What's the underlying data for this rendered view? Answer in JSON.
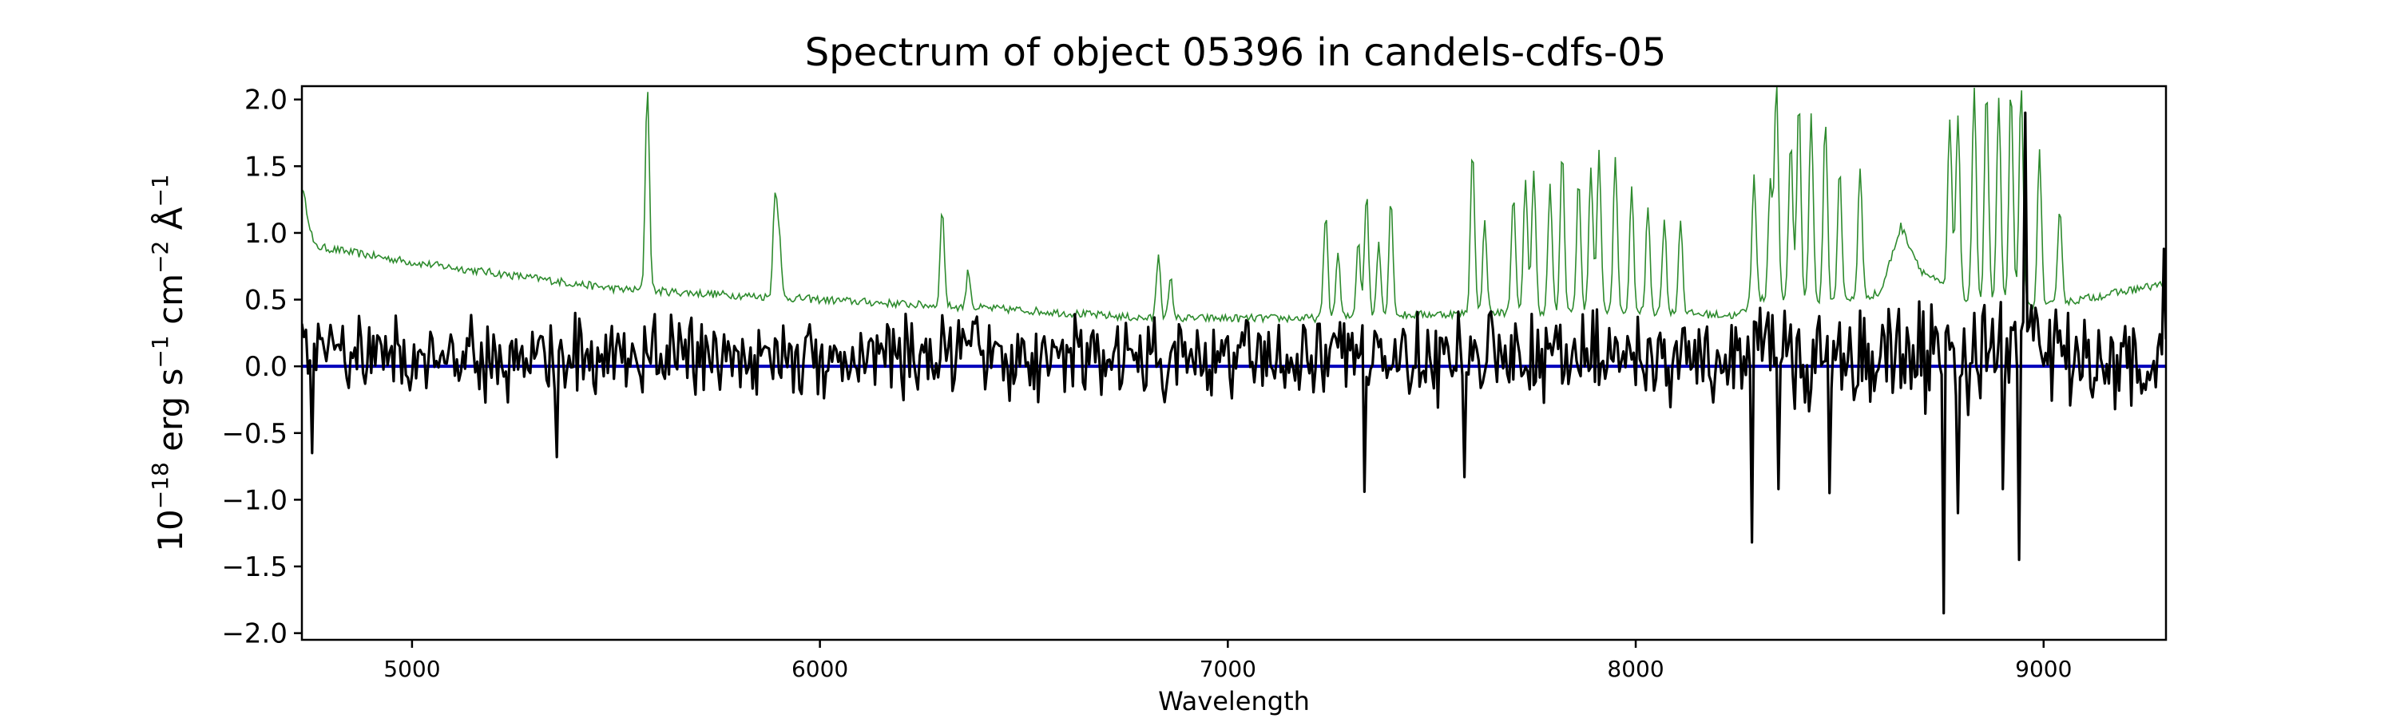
{
  "chart_data": {
    "type": "line",
    "title": "Spectrum of object 05396 in candels-cdfs-05",
    "xlabel": "Wavelength",
    "ylabel": {
      "base": "10",
      "exp1": "−18",
      "mid1": " erg s",
      "exp2": "−1",
      "mid2": " cm",
      "exp3": "−2",
      "mid3": " Å",
      "exp4": "−1"
    },
    "xlim": [
      4730,
      9300
    ],
    "ylim": [
      -2.05,
      2.1
    ],
    "xticks": [
      5000,
      6000,
      7000,
      8000,
      9000
    ],
    "yticks": [
      2.0,
      1.5,
      1.0,
      0.5,
      0.0,
      -0.5,
      -1.0,
      -1.5,
      -2.0
    ],
    "ytick_labels": [
      "2.0",
      "1.5",
      "1.0",
      "0.5",
      "0.0",
      "−0.5",
      "−1.0",
      "−1.5",
      "−2.0"
    ],
    "grid": false,
    "series": [
      {
        "color": "#2e8b2e",
        "continuum": [
          [
            4730,
            1.35
          ],
          [
            4760,
            0.9
          ],
          [
            5000,
            0.78
          ],
          [
            5500,
            0.58
          ],
          [
            6000,
            0.5
          ],
          [
            6500,
            0.42
          ],
          [
            6800,
            0.36
          ],
          [
            7000,
            0.36
          ],
          [
            7200,
            0.36
          ],
          [
            7500,
            0.39
          ],
          [
            7800,
            0.41
          ],
          [
            8100,
            0.4
          ],
          [
            8250,
            0.38
          ],
          [
            8300,
            0.5
          ],
          [
            8500,
            0.48
          ],
          [
            8600,
            0.55
          ],
          [
            8650,
            1.05
          ],
          [
            8700,
            0.72
          ],
          [
            8800,
            0.5
          ],
          [
            9000,
            0.45
          ],
          [
            9300,
            0.62
          ]
        ],
        "peaks": [
          [
            5577,
            2.1
          ],
          [
            5890,
            1.27
          ],
          [
            5900,
            0.95
          ],
          [
            6300,
            1.18
          ],
          [
            6364,
            0.72
          ],
          [
            6830,
            0.85
          ],
          [
            6860,
            0.65
          ],
          [
            7240,
            1.15
          ],
          [
            7270,
            0.85
          ],
          [
            7320,
            0.95
          ],
          [
            7340,
            1.3
          ],
          [
            7370,
            0.95
          ],
          [
            7400,
            1.25
          ],
          [
            7600,
            1.65
          ],
          [
            7630,
            1.1
          ],
          [
            7700,
            1.3
          ],
          [
            7730,
            1.4
          ],
          [
            7750,
            1.45
          ],
          [
            7790,
            1.35
          ],
          [
            7820,
            1.6
          ],
          [
            7860,
            1.4
          ],
          [
            7890,
            1.5
          ],
          [
            7910,
            1.62
          ],
          [
            7950,
            1.55
          ],
          [
            7990,
            1.32
          ],
          [
            8030,
            1.2
          ],
          [
            8070,
            1.1
          ],
          [
            8110,
            1.1
          ],
          [
            8290,
            1.45
          ],
          [
            8330,
            1.4
          ],
          [
            8345,
            2.1
          ],
          [
            8380,
            1.7
          ],
          [
            8400,
            2.0
          ],
          [
            8430,
            1.9
          ],
          [
            8465,
            1.85
          ],
          [
            8500,
            1.5
          ],
          [
            8550,
            1.5
          ],
          [
            8770,
            1.85
          ],
          [
            8790,
            1.9
          ],
          [
            8830,
            2.1
          ],
          [
            8860,
            2.1
          ],
          [
            8890,
            2.0
          ],
          [
            8920,
            2.1
          ],
          [
            8945,
            2.1
          ],
          [
            8990,
            1.6
          ],
          [
            9040,
            1.2
          ]
        ],
        "noise": 0.06
      },
      {
        "color": "#000000",
        "noise": 0.23,
        "features": [
          [
            4755,
            -0.65
          ],
          [
            5355,
            -0.68
          ],
          [
            7335,
            -0.94
          ],
          [
            7580,
            -0.83
          ],
          [
            8285,
            -1.32
          ],
          [
            8350,
            -0.92
          ],
          [
            8475,
            -0.95
          ],
          [
            8755,
            -1.85
          ],
          [
            8790,
            -1.1
          ],
          [
            8900,
            -0.92
          ],
          [
            8940,
            -1.45
          ],
          [
            8955,
            1.9
          ],
          [
            9060,
            0.4
          ],
          [
            9295,
            0.88
          ]
        ]
      },
      {
        "color": "#0000bb",
        "y": 0.0
      }
    ]
  }
}
